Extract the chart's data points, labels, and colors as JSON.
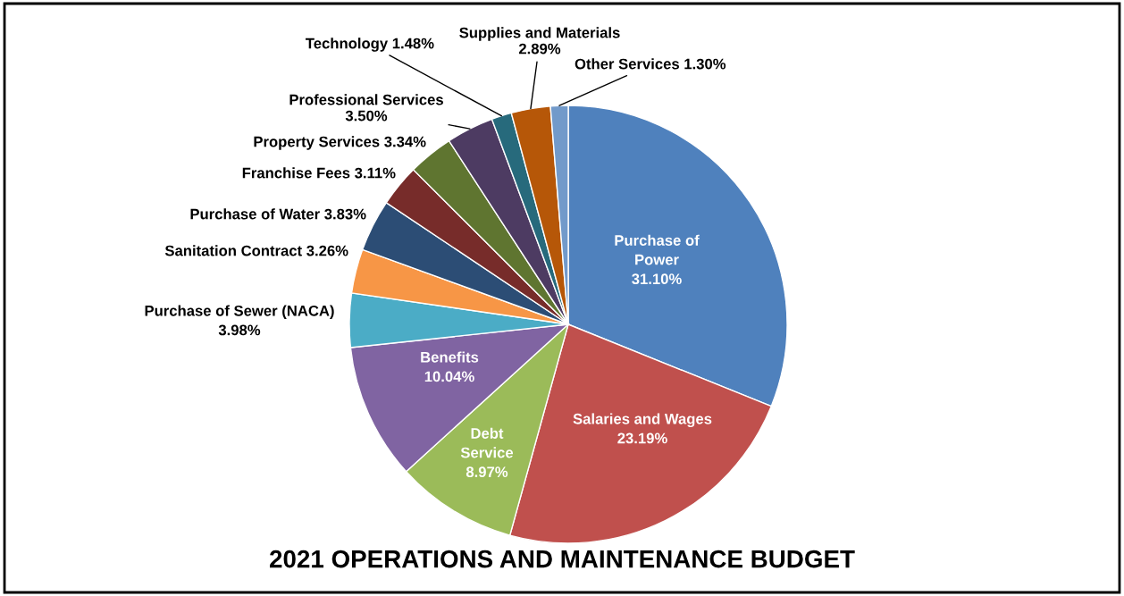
{
  "chart_data": {
    "type": "pie",
    "title": "2021 OPERATIONS AND MAINTENANCE BUDGET",
    "categories": [
      "Purchase of\nPower",
      "Salaries and Wages",
      "Debt\nService",
      "Benefits",
      "Purchase of Sewer (NACA)",
      "Sanitation Contract",
      "Purchase of Water",
      "Franchise Fees",
      "Property Services",
      "Professional Services",
      "Technology",
      "Supplies and Materials",
      "Other Services"
    ],
    "values": [
      31.1,
      23.19,
      8.97,
      10.04,
      3.98,
      3.26,
      3.83,
      3.11,
      3.34,
      3.5,
      1.48,
      2.89,
      1.3
    ],
    "value_labels": [
      "31.10%",
      "23.19%",
      "8.97%",
      "10.04%",
      "3.98%",
      "3.26%",
      "3.83%",
      "3.11%",
      "3.34%",
      "3.50%",
      "1.48%",
      "2.89%",
      "1.30%"
    ],
    "colors": [
      "#4f81bd",
      "#c0504d",
      "#9bbb59",
      "#8064a2",
      "#4bacc6",
      "#f79646",
      "#2c4d75",
      "#772c2a",
      "#5f7530",
      "#4d3b62",
      "#276a7c",
      "#b65708",
      "#729aca"
    ],
    "legend": false
  }
}
